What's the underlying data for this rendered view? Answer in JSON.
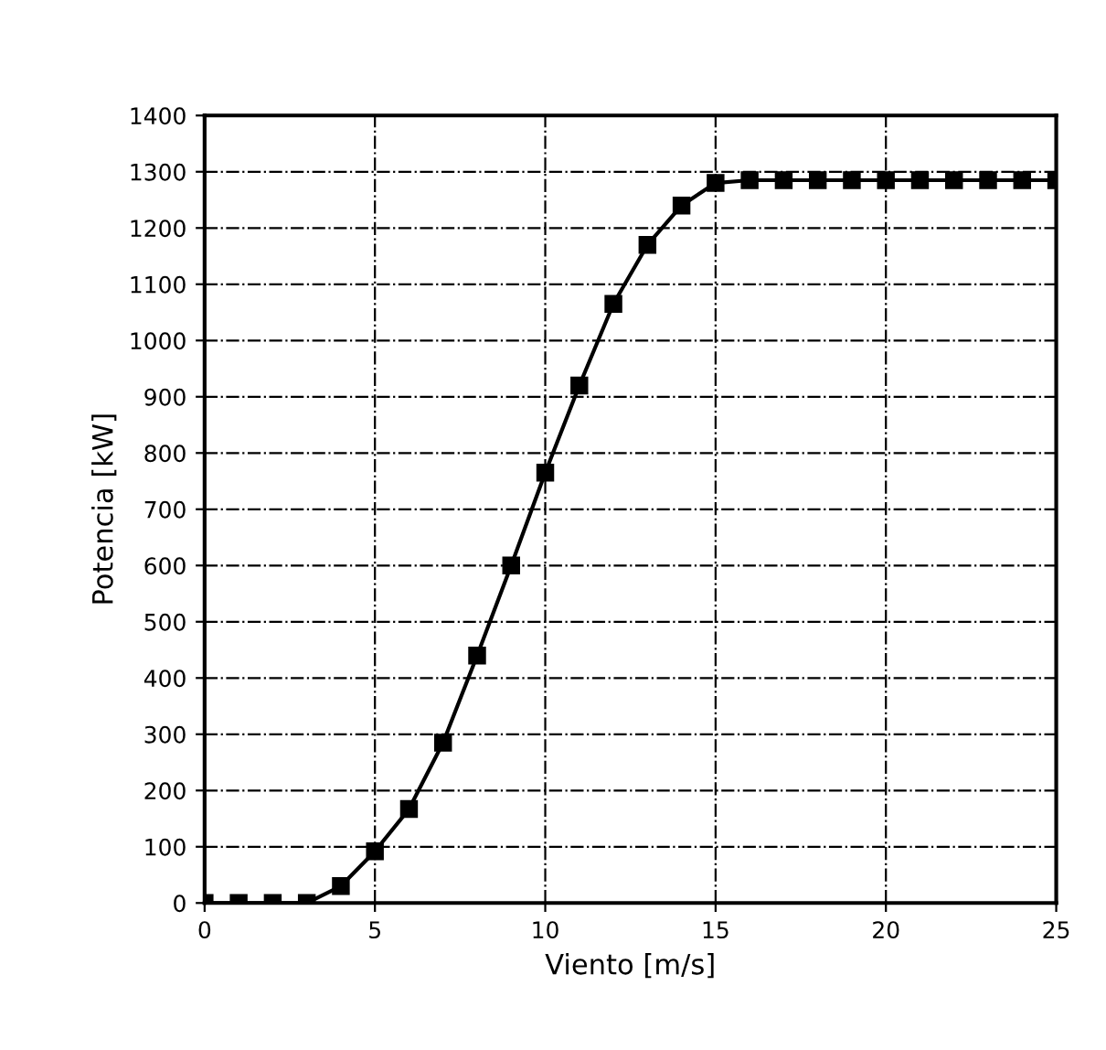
{
  "chart_data": {
    "type": "line",
    "xlabel": "Viento [m/s]",
    "ylabel": "Potencia [kW]",
    "x": [
      0,
      1,
      2,
      3,
      4,
      5,
      6,
      7,
      8,
      9,
      10,
      11,
      12,
      13,
      14,
      15,
      16,
      17,
      18,
      19,
      20,
      21,
      22,
      23,
      24,
      25
    ],
    "series": [
      {
        "color": "#000000",
        "values": [
          0,
          0,
          0,
          0,
          30,
          92,
          167,
          285,
          440,
          600,
          765,
          920,
          1065,
          1170,
          1240,
          1280,
          1285,
          1285,
          1285,
          1285,
          1285,
          1285,
          1285,
          1285,
          1285,
          1285
        ]
      }
    ],
    "xlim": [
      0,
      25
    ],
    "xticks": [
      0,
      5,
      10,
      15,
      20,
      25
    ],
    "ylim": [
      0,
      1400
    ],
    "yticks": [
      0,
      100,
      200,
      300,
      400,
      500,
      600,
      700,
      800,
      900,
      1000,
      1100,
      1200,
      1300,
      1400
    ],
    "grid": true,
    "marker": "square",
    "line_style": "solid"
  }
}
